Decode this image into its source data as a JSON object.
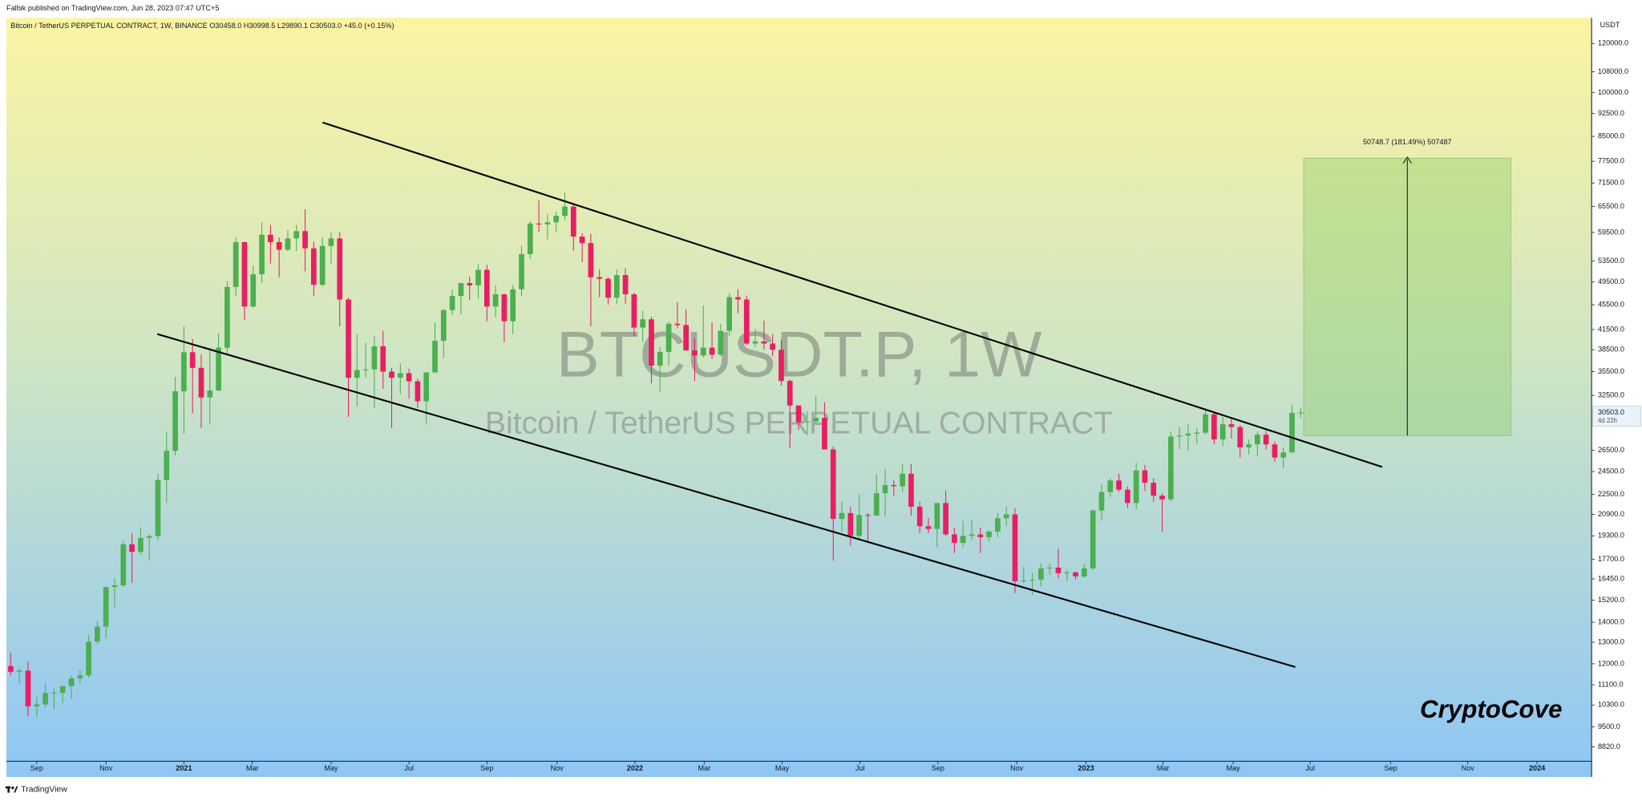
{
  "published": "Falbik published on TradingView.com, Jun 28, 2023 07:47 UTC+5",
  "chart_data": {
    "type": "candlestick",
    "header": "Bitcoin / TetherUS PERPETUAL CONTRACT, 1W, BINANCE  O30458.0  H30998.5  L29890.1  C30503.0  +45.0 (+0.15%)",
    "watermark_title": "BTCUSDT.P, 1W",
    "watermark_subtitle": "Bitcoin / TetherUS PERPETUAL CONTRACT",
    "currency": "USDT",
    "signature": "CryptoCove",
    "measure_label": "50748.7 (181.49%) 507487",
    "last_price": {
      "value": 30503,
      "label": "30503.0"
    },
    "countdown": "4d 22h",
    "up_color": "#4caf50",
    "down_color": "#e91e63",
    "log_scale": true,
    "ylim": [
      8360,
      132000
    ],
    "yticks": [
      {
        "value": 120000,
        "label": "120000.0"
      },
      {
        "value": 108000,
        "label": "108000.0"
      },
      {
        "value": 100000,
        "label": "100000.0"
      },
      {
        "value": 92500,
        "label": "92500.0"
      },
      {
        "value": 85000,
        "label": "85000.0"
      },
      {
        "value": 77500,
        "label": "77500.0"
      },
      {
        "value": 71500,
        "label": "71500.0"
      },
      {
        "value": 65500,
        "label": "65500.0"
      },
      {
        "value": 59500,
        "label": "59500.0"
      },
      {
        "value": 53500,
        "label": "53500.0"
      },
      {
        "value": 49500,
        "label": "49500.0"
      },
      {
        "value": 45500,
        "label": "45500.0"
      },
      {
        "value": 41500,
        "label": "41500.0"
      },
      {
        "value": 38500,
        "label": "38500.0"
      },
      {
        "value": 35500,
        "label": "35500.0"
      },
      {
        "value": 32500,
        "label": "32500.0"
      },
      {
        "value": 26500,
        "label": "26500.0"
      },
      {
        "value": 24500,
        "label": "24500.0"
      },
      {
        "value": 22500,
        "label": "22500.0"
      },
      {
        "value": 20900,
        "label": "20900.0"
      },
      {
        "value": 19300,
        "label": "19300.0"
      },
      {
        "value": 17700,
        "label": "17700.0"
      },
      {
        "value": 16450,
        "label": "16450.0"
      },
      {
        "value": 15200,
        "label": "15200.0"
      },
      {
        "value": 14000,
        "label": "14000.0"
      },
      {
        "value": 13000,
        "label": "13000.0"
      },
      {
        "value": 12000,
        "label": "12000.0"
      },
      {
        "value": 11100,
        "label": "11100.0"
      },
      {
        "value": 10300,
        "label": "10300.0"
      },
      {
        "value": 9500,
        "label": "9500.0"
      },
      {
        "value": 8820,
        "label": "8820.0"
      }
    ],
    "xlim": [
      -0.5,
      182.6
    ],
    "xticks": [
      {
        "value": 3,
        "label": "Sep"
      },
      {
        "value": 11,
        "label": "Nov"
      },
      {
        "value": 20,
        "label": "2021"
      },
      {
        "value": 27.9,
        "label": "Mar"
      },
      {
        "value": 37,
        "label": "May"
      },
      {
        "value": 46,
        "label": "Jul"
      },
      {
        "value": 55,
        "label": "Sep"
      },
      {
        "value": 63.1,
        "label": "Nov"
      },
      {
        "value": 72.1,
        "label": "2022"
      },
      {
        "value": 80.1,
        "label": "Mar"
      },
      {
        "value": 89.1,
        "label": "May"
      },
      {
        "value": 98.1,
        "label": "Jul"
      },
      {
        "value": 107.1,
        "label": "Sep"
      },
      {
        "value": 116.2,
        "label": "Nov"
      },
      {
        "value": 124.2,
        "label": "2023"
      },
      {
        "value": 133.1,
        "label": "Mar"
      },
      {
        "value": 141.2,
        "label": "May"
      },
      {
        "value": 150.1,
        "label": "Jul"
      },
      {
        "value": 159.4,
        "label": "Sep"
      },
      {
        "value": 168.3,
        "label": "Nov"
      },
      {
        "value": 176.3,
        "label": "2024"
      }
    ],
    "ohlc": [
      [
        11900,
        12500,
        11500,
        11650
      ],
      [
        11650,
        11800,
        11150,
        11700
      ],
      [
        11700,
        12090,
        9880,
        10250
      ],
      [
        10250,
        10600,
        9850,
        10320
      ],
      [
        10320,
        11180,
        10200,
        10770
      ],
      [
        10770,
        10950,
        10140,
        10780
      ],
      [
        10780,
        10950,
        10370,
        11050
      ],
      [
        11050,
        11500,
        10530,
        11370
      ],
      [
        11370,
        11720,
        11170,
        11500
      ],
      [
        11500,
        13350,
        11400,
        13030
      ],
      [
        13030,
        14080,
        12900,
        13780
      ],
      [
        13780,
        15970,
        13200,
        15960
      ],
      [
        15960,
        16480,
        14800,
        16060
      ],
      [
        16060,
        18950,
        15930,
        18700
      ],
      [
        18700,
        19480,
        16200,
        18180
      ],
      [
        18180,
        19920,
        18000,
        19150
      ],
      [
        19150,
        19420,
        17600,
        19270
      ],
      [
        19270,
        24300,
        19000,
        23740
      ],
      [
        23740,
        28400,
        21800,
        26450
      ],
      [
        26450,
        34800,
        26000,
        33000
      ],
      [
        33000,
        42000,
        28200,
        38150
      ],
      [
        38150,
        40100,
        30400,
        36000
      ],
      [
        36000,
        37800,
        28800,
        32250
      ],
      [
        32250,
        38600,
        29200,
        33100
      ],
      [
        33100,
        40950,
        33000,
        38800
      ],
      [
        38800,
        49700,
        37900,
        48600
      ],
      [
        48600,
        58350,
        47000,
        57400
      ],
      [
        57400,
        57500,
        43000,
        45200
      ],
      [
        45200,
        52650,
        45000,
        50950
      ],
      [
        50950,
        61800,
        49300,
        59000
      ],
      [
        59000,
        61200,
        53000,
        57400
      ],
      [
        57400,
        58400,
        50400,
        55800
      ],
      [
        55800,
        60000,
        55500,
        58200
      ],
      [
        58200,
        61200,
        55500,
        59800
      ],
      [
        59800,
        64850,
        51500,
        56100
      ],
      [
        56100,
        57500,
        47000,
        49000
      ],
      [
        49000,
        58400,
        48700,
        56600
      ],
      [
        56600,
        59500,
        53000,
        58200
      ],
      [
        58200,
        59600,
        42000,
        46400
      ],
      [
        46400,
        46700,
        30000,
        34700
      ],
      [
        34700,
        40800,
        31200,
        35700
      ],
      [
        35700,
        39500,
        34700,
        35800
      ],
      [
        35800,
        40500,
        31000,
        39000
      ],
      [
        39000,
        41300,
        33300,
        35500
      ],
      [
        35500,
        36000,
        28800,
        34700
      ],
      [
        34700,
        36600,
        32700,
        35300
      ],
      [
        35300,
        35900,
        32100,
        34250
      ],
      [
        34250,
        34600,
        31000,
        31800
      ],
      [
        31800,
        35400,
        29300,
        35400
      ],
      [
        35400,
        42600,
        35300,
        39800
      ],
      [
        39800,
        44800,
        37300,
        44600
      ],
      [
        44600,
        48100,
        43800,
        47000
      ],
      [
        47000,
        49400,
        43900,
        49300
      ],
      [
        49300,
        50500,
        46300,
        48900
      ],
      [
        48900,
        52900,
        46500,
        51800
      ],
      [
        51800,
        52800,
        42800,
        45200
      ],
      [
        45200,
        48900,
        43400,
        47300
      ],
      [
        47300,
        47400,
        39600,
        42800
      ],
      [
        42800,
        49000,
        40800,
        48200
      ],
      [
        48200,
        56600,
        47000,
        54900
      ],
      [
        54900,
        62000,
        53900,
        61500
      ],
      [
        61500,
        67000,
        59600,
        61300
      ],
      [
        61300,
        63700,
        58000,
        61800
      ],
      [
        61800,
        64300,
        59500,
        63300
      ],
      [
        63300,
        69000,
        62300,
        65500
      ],
      [
        65500,
        66300,
        55600,
        58600
      ],
      [
        58600,
        59300,
        53300,
        57200
      ],
      [
        57200,
        59200,
        42000,
        50400
      ],
      [
        50400,
        51900,
        46800,
        50100
      ],
      [
        50100,
        50400,
        45500,
        46700
      ],
      [
        46700,
        51900,
        45600,
        50800
      ],
      [
        50800,
        52100,
        45700,
        47300
      ],
      [
        47300,
        47600,
        40500,
        41800
      ],
      [
        41800,
        44500,
        39600,
        43100
      ],
      [
        43100,
        43500,
        34000,
        36300
      ],
      [
        36300,
        38900,
        32900,
        38200
      ],
      [
        38200,
        42700,
        36300,
        42400
      ],
      [
        42400,
        45900,
        41700,
        42200
      ],
      [
        42200,
        44700,
        39400,
        38400
      ],
      [
        38400,
        40100,
        34300,
        37700
      ],
      [
        37700,
        45400,
        37400,
        38800
      ],
      [
        38800,
        42600,
        37200,
        37800
      ],
      [
        37800,
        42400,
        37600,
        41300
      ],
      [
        41300,
        47500,
        40500,
        46800
      ],
      [
        46800,
        48200,
        44100,
        46400
      ],
      [
        46400,
        47100,
        39200,
        39400
      ],
      [
        39400,
        41600,
        38900,
        39700
      ],
      [
        39700,
        42900,
        38500,
        39400
      ],
      [
        39400,
        40800,
        37600,
        38500
      ],
      [
        38500,
        40000,
        33700,
        34300
      ],
      [
        34300,
        34500,
        26700,
        31300
      ],
      [
        31300,
        31300,
        28600,
        29400
      ],
      [
        29400,
        30600,
        28000,
        29500
      ],
      [
        29500,
        32400,
        29200,
        29900
      ],
      [
        29900,
        31700,
        26600,
        26600
      ],
      [
        26600,
        26900,
        17600,
        20550
      ],
      [
        20550,
        21900,
        19600,
        21000
      ],
      [
        21000,
        21500,
        18600,
        19300
      ],
      [
        19300,
        22500,
        19000,
        20850
      ],
      [
        20850,
        21000,
        18900,
        20800
      ],
      [
        20800,
        24300,
        20800,
        22600
      ],
      [
        22600,
        24700,
        20700,
        23300
      ],
      [
        23300,
        23700,
        22400,
        23200
      ],
      [
        23200,
        25200,
        22700,
        24300
      ],
      [
        24300,
        25200,
        20800,
        21500
      ],
      [
        21500,
        21900,
        19500,
        20000
      ],
      [
        20000,
        20600,
        19500,
        19800
      ],
      [
        19800,
        21800,
        18500,
        21800
      ],
      [
        21800,
        22800,
        19300,
        19400
      ],
      [
        19400,
        19900,
        18100,
        18800
      ],
      [
        18800,
        20400,
        18500,
        19300
      ],
      [
        19300,
        20500,
        19000,
        19400
      ],
      [
        19400,
        19900,
        18100,
        19200
      ],
      [
        19200,
        19700,
        18900,
        19600
      ],
      [
        19600,
        21000,
        19200,
        20600
      ],
      [
        20600,
        21500,
        20000,
        20900
      ],
      [
        20900,
        21400,
        15600,
        16300
      ],
      [
        16300,
        17200,
        16200,
        16350
      ],
      [
        16350,
        16800,
        15500,
        16400
      ],
      [
        16400,
        17400,
        16000,
        17100
      ],
      [
        17100,
        17400,
        16700,
        17150
      ],
      [
        17150,
        18400,
        16500,
        16800
      ],
      [
        16800,
        17000,
        16300,
        16850
      ],
      [
        16850,
        16900,
        16400,
        16600
      ],
      [
        16600,
        17400,
        16500,
        17100
      ],
      [
        17100,
        21300,
        17000,
        21200
      ],
      [
        21200,
        23400,
        20400,
        22700
      ],
      [
        22700,
        23900,
        22300,
        23700
      ],
      [
        23700,
        24300,
        22700,
        22900
      ],
      [
        22900,
        23200,
        21400,
        21800
      ],
      [
        21800,
        25300,
        21300,
        24600
      ],
      [
        24600,
        25100,
        22800,
        23500
      ],
      [
        23500,
        23900,
        21900,
        22400
      ],
      [
        22400,
        22600,
        19600,
        22100
      ],
      [
        22100,
        28400,
        21900,
        27900
      ],
      [
        27900,
        28900,
        26600,
        28000
      ],
      [
        28000,
        29200,
        26500,
        28200
      ],
      [
        28200,
        28800,
        27200,
        28300
      ],
      [
        28300,
        31000,
        28100,
        30300
      ],
      [
        30300,
        30500,
        27100,
        27600
      ],
      [
        27600,
        30000,
        26900,
        29200
      ],
      [
        29200,
        29900,
        27700,
        28900
      ],
      [
        28900,
        29100,
        25800,
        26800
      ],
      [
        26800,
        27600,
        26100,
        27100
      ],
      [
        27100,
        28400,
        25900,
        28100
      ],
      [
        28100,
        28500,
        26600,
        27100
      ],
      [
        27100,
        27400,
        25400,
        25800
      ],
      [
        25800,
        26800,
        24800,
        26300
      ],
      [
        26300,
        31400,
        26300,
        30460
      ],
      [
        30458,
        30998.5,
        29890.1,
        30503
      ]
    ]
  },
  "footer": "TradingView"
}
